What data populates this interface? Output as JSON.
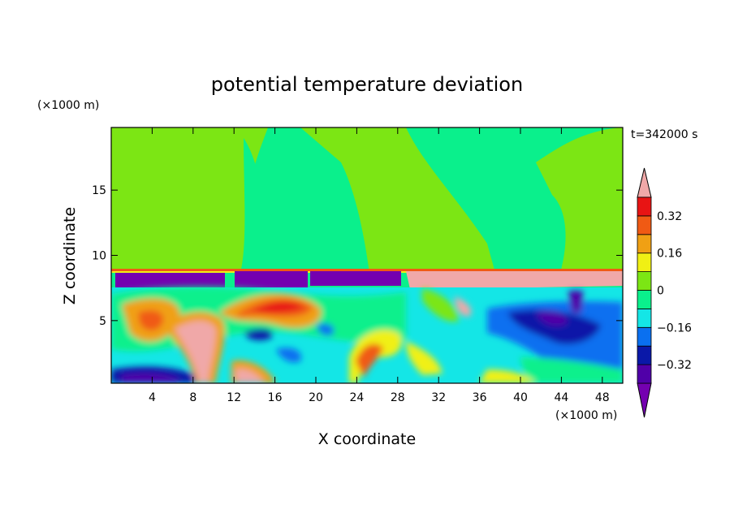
{
  "chart_data": {
    "type": "heatmap",
    "title": "potential temperature deviation",
    "xlabel": "X coordinate",
    "ylabel": "Z coordinate",
    "x_unit": "(×1000 m)",
    "y_unit": "(×1000 m)",
    "time_label": "t=342000 s",
    "xlim": [
      0,
      50
    ],
    "ylim": [
      0.2,
      19.8
    ],
    "x_ticks": [
      4,
      8,
      12,
      16,
      20,
      24,
      28,
      32,
      36,
      40,
      44,
      48
    ],
    "y_ticks": [
      5,
      10,
      15
    ],
    "contour_levels": [
      -0.4,
      -0.32,
      -0.24,
      -0.16,
      -0.08,
      0,
      0.08,
      0.16,
      0.24,
      0.32,
      0.4
    ],
    "colorbar_labels": [
      "0.32",
      "0.16",
      "0",
      "−0.16",
      "−0.32"
    ],
    "colorbar_label_values": [
      0.32,
      0.16,
      0,
      -0.16,
      -0.32
    ],
    "colorbar_colors": [
      "#7400B0",
      "#5000A8",
      "#0A18A8",
      "#0A70F0",
      "#14E6E6",
      "#0AF08C",
      "#7CE614",
      "#F0F014",
      "#F0A014",
      "#F05A14",
      "#E81414",
      "#F0A8A8"
    ],
    "regions": {
      "upper_layer_z": [
        9,
        19.8
      ],
      "inversion_band_z": [
        7.5,
        9
      ],
      "lower_layer_z": [
        0.2,
        7.5
      ]
    }
  }
}
